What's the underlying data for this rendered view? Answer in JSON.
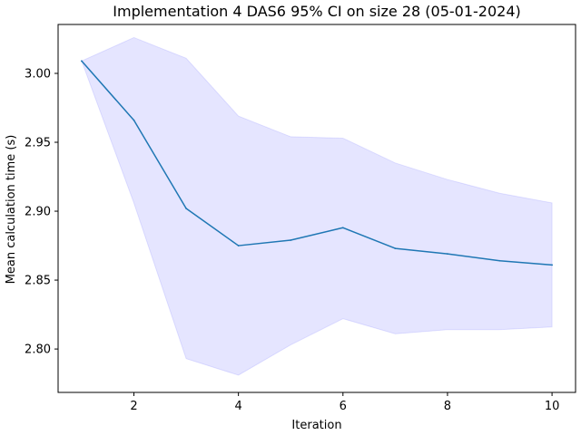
{
  "chart_data": {
    "type": "line",
    "title": "Implementation 4 DAS6 95% CI on size 28 (05-01-2024)",
    "xlabel": "Iteration",
    "ylabel": "Mean calculation time (s)",
    "xlim": [
      0.55,
      10.45
    ],
    "ylim": [
      2.7685,
      3.0355
    ],
    "x_ticks": [
      2,
      4,
      6,
      8,
      10
    ],
    "x_tick_labels": [
      "2",
      "4",
      "6",
      "8",
      "10"
    ],
    "y_ticks": [
      2.8,
      2.85,
      2.9,
      2.95,
      3.0
    ],
    "y_tick_labels": [
      "2.80",
      "2.85",
      "2.90",
      "2.95",
      "3.00"
    ],
    "grid": false,
    "x": [
      1,
      2,
      3,
      4,
      5,
      6,
      7,
      8,
      9,
      10
    ],
    "series": [
      {
        "values": [
          3.009,
          2.966,
          2.902,
          2.875,
          2.879,
          2.888,
          2.873,
          2.869,
          2.864,
          2.861
        ],
        "color": "#1f77b4"
      }
    ],
    "ci_band": {
      "lower": [
        3.009,
        2.906,
        2.793,
        2.781,
        2.803,
        2.822,
        2.811,
        2.814,
        2.814,
        2.816
      ],
      "upper": [
        3.009,
        3.026,
        3.011,
        2.969,
        2.954,
        2.953,
        2.935,
        2.923,
        2.913,
        2.906
      ],
      "color": "#0000ff",
      "alpha": 0.1
    }
  }
}
